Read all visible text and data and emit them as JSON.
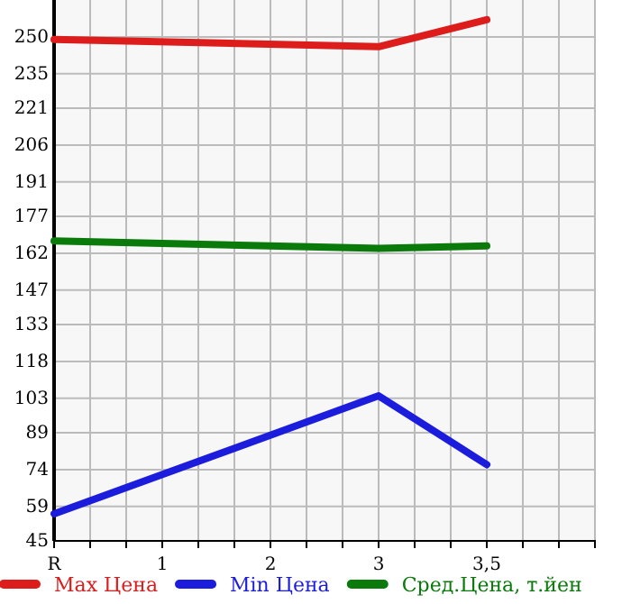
{
  "chart_data": {
    "type": "line",
    "categories": [
      "R",
      "1",
      "2",
      "3",
      "3,5",
      null
    ],
    "series": [
      {
        "name": "Max Цена",
        "color": "#dd1c1c",
        "values": [
          249,
          null,
          null,
          246,
          257,
          null
        ]
      },
      {
        "name": "Min Цена",
        "color": "#1c1cdd",
        "values": [
          56,
          null,
          null,
          104,
          76,
          null
        ]
      },
      {
        "name": "Сред.Цена, т.йен",
        "color": "#0a7a0a",
        "values": [
          167,
          null,
          null,
          164,
          165,
          null
        ]
      }
    ],
    "ylim": [
      45,
      265
    ],
    "yticks": [
      45,
      59,
      74,
      89,
      103,
      118,
      133,
      147,
      162,
      177,
      191,
      206,
      221,
      235,
      250
    ],
    "grid": true,
    "legend": "bottom",
    "marker": "none",
    "line_style": "solid"
  }
}
